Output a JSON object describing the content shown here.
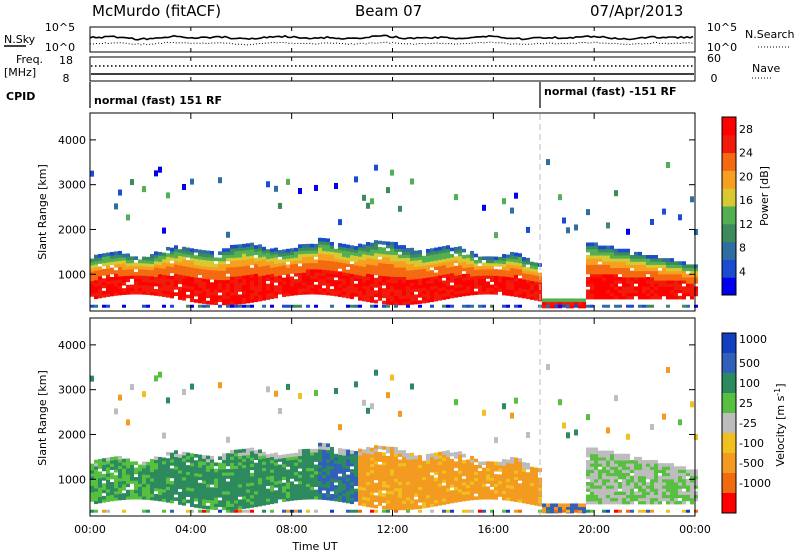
{
  "header": {
    "station": "McMurdo (fitACF)",
    "beam": "Beam 07",
    "date": "07/Apr/2013"
  },
  "top_panels": {
    "nsky_label": "N.Sky",
    "nsky_ticks": [
      "10^5",
      "10^0"
    ],
    "nsearch_label": "N.Search",
    "nsearch_ticks": [
      "10^5",
      "10^0"
    ],
    "freq_label_1": "Freq.",
    "freq_label_2": "[MHz]",
    "freq_ticks": [
      "18",
      "8"
    ],
    "nave_label": "Nave",
    "nave_ticks": [
      "60",
      "0"
    ],
    "cpid_label": "CPID",
    "cpid_segments": [
      "normal (fast) 151 RF",
      "normal (fast) -151 RF"
    ]
  },
  "colors": {
    "power_scale": [
      "#0000ee",
      "#1a4bd0",
      "#2e6ea0",
      "#3d8a5a",
      "#52b052",
      "#d8c832",
      "#f7a020",
      "#f46a10",
      "#f21a0a",
      "#ff0000"
    ],
    "velocity_scale": [
      "#1040c0",
      "#3060b8",
      "#2d8a5e",
      "#58c040",
      "#bdbdbd",
      "#f0c020",
      "#f39a20",
      "#f06a10",
      "#ff0000"
    ]
  },
  "chart_data": [
    {
      "type": "heatmap",
      "name": "Power",
      "ylabel": "Slant Range [km]",
      "ylim": [
        180,
        4600
      ],
      "yticks": [
        "1000",
        "2000",
        "3000",
        "4000"
      ],
      "xlim_hours": [
        0,
        24
      ],
      "colorbar_label": "Power [dB]",
      "colorbar_ticks": [
        "4",
        "8",
        "12",
        "16",
        "20",
        "24",
        "28"
      ],
      "clim": [
        0,
        30
      ]
    },
    {
      "type": "heatmap",
      "name": "Velocity",
      "ylabel": "Slant Range [km]",
      "ylim": [
        180,
        4600
      ],
      "yticks": [
        "1000",
        "2000",
        "3000",
        "4000"
      ],
      "xlim_hours": [
        0,
        24
      ],
      "colorbar_label": "Velocity [m s^-1]",
      "colorbar_ticks": [
        "1000",
        "500",
        "100",
        "25",
        "-25",
        "-100",
        "-500",
        "-1000"
      ]
    }
  ],
  "xaxis": {
    "label": "Time UT",
    "ticks": [
      "00:00",
      "04:00",
      "08:00",
      "12:00",
      "16:00",
      "20:00",
      "00:00"
    ]
  }
}
